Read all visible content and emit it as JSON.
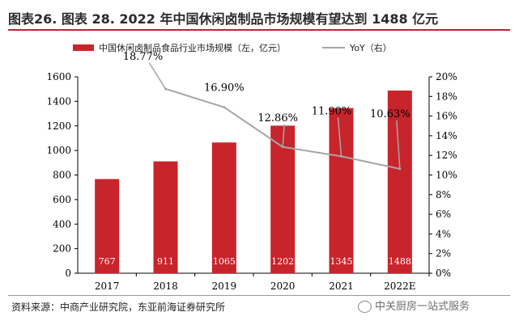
{
  "title": "图表26.  图表 28. 2022 年中国休闲卤制品市场规模有望达到 1488 亿元",
  "source": "资料来源：中商产业研究院，东亚前海证券研究所",
  "watermark": "中关厨房一站式服务",
  "colors": {
    "bar": "#c8242b",
    "line": "#a6a6a6",
    "title_rule": "#b22a2e"
  },
  "chart_data": {
    "type": "bar",
    "categories": [
      "2017",
      "2018",
      "2019",
      "2020",
      "2021",
      "2022E"
    ],
    "series": [
      {
        "name": "中国休闲卤制品食品行业市场规模（左，亿元）",
        "type": "bar",
        "axis": "left",
        "values": [
          767,
          911,
          1065,
          1202,
          1345,
          1488
        ],
        "labels": [
          "767",
          "911",
          "1065",
          "1202",
          "1345",
          "1488"
        ]
      },
      {
        "name": "YoY（右）",
        "type": "line",
        "axis": "right",
        "values": [
          null,
          18.77,
          16.9,
          12.86,
          11.9,
          10.63
        ],
        "labels": [
          "",
          "18.77%",
          "16.90%",
          "12.86%",
          "11.90%",
          "10.63%"
        ]
      }
    ],
    "yleft": {
      "lim": [
        0,
        1600
      ],
      "ticks": [
        "0",
        "200",
        "400",
        "600",
        "800",
        "1000",
        "1200",
        "1400",
        "1600"
      ]
    },
    "yright": {
      "lim": [
        0,
        20
      ],
      "ticks": [
        "0%",
        "2%",
        "4%",
        "6%",
        "8%",
        "10%",
        "12%",
        "14%",
        "16%",
        "18%",
        "20%"
      ]
    },
    "legend_position": "top"
  }
}
